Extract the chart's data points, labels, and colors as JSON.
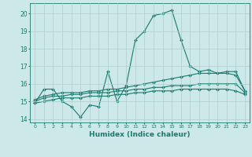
{
  "xlabel": "Humidex (Indice chaleur)",
  "ylabel": "",
  "xlim": [
    -0.5,
    23.5
  ],
  "ylim": [
    13.8,
    20.6
  ],
  "yticks": [
    14,
    15,
    16,
    17,
    18,
    19,
    20
  ],
  "xticks": [
    0,
    1,
    2,
    3,
    4,
    5,
    6,
    7,
    8,
    9,
    10,
    11,
    12,
    13,
    14,
    15,
    16,
    17,
    18,
    19,
    20,
    21,
    22,
    23
  ],
  "background_color": "#cce8e8",
  "grid_color": "#b0cccc",
  "line_color": "#1a7a6e",
  "line1_x": [
    0,
    1,
    2,
    3,
    4,
    5,
    6,
    7,
    8,
    9,
    10,
    11,
    12,
    13,
    14,
    15,
    16,
    17,
    18,
    19,
    20,
    21,
    22,
    23
  ],
  "line1_y": [
    14.9,
    15.7,
    15.7,
    15.0,
    14.7,
    14.1,
    14.8,
    14.7,
    16.7,
    15.0,
    15.9,
    18.5,
    19.0,
    19.9,
    20.0,
    20.2,
    18.5,
    17.0,
    16.7,
    16.8,
    16.6,
    16.6,
    16.5,
    15.6
  ],
  "line2_x": [
    0,
    1,
    2,
    3,
    4,
    5,
    6,
    7,
    8,
    9,
    10,
    11,
    12,
    13,
    14,
    15,
    16,
    17,
    18,
    19,
    20,
    21,
    22,
    23
  ],
  "line2_y": [
    15.1,
    15.3,
    15.4,
    15.5,
    15.5,
    15.5,
    15.6,
    15.6,
    15.7,
    15.7,
    15.8,
    15.9,
    16.0,
    16.1,
    16.2,
    16.3,
    16.4,
    16.5,
    16.6,
    16.6,
    16.6,
    16.7,
    16.7,
    15.6
  ],
  "line3_x": [
    0,
    1,
    2,
    3,
    4,
    5,
    6,
    7,
    8,
    9,
    10,
    11,
    12,
    13,
    14,
    15,
    16,
    17,
    18,
    19,
    20,
    21,
    22,
    23
  ],
  "line3_y": [
    15.0,
    15.2,
    15.3,
    15.3,
    15.4,
    15.4,
    15.5,
    15.5,
    15.5,
    15.6,
    15.6,
    15.7,
    15.7,
    15.8,
    15.8,
    15.9,
    15.9,
    15.9,
    16.0,
    16.0,
    16.0,
    16.0,
    16.0,
    15.5
  ],
  "line4_x": [
    0,
    1,
    2,
    3,
    4,
    5,
    6,
    7,
    8,
    9,
    10,
    11,
    12,
    13,
    14,
    15,
    16,
    17,
    18,
    19,
    20,
    21,
    22,
    23
  ],
  "line4_y": [
    14.9,
    15.0,
    15.1,
    15.2,
    15.2,
    15.2,
    15.3,
    15.3,
    15.3,
    15.4,
    15.4,
    15.5,
    15.5,
    15.6,
    15.6,
    15.6,
    15.7,
    15.7,
    15.7,
    15.7,
    15.7,
    15.7,
    15.6,
    15.4
  ]
}
